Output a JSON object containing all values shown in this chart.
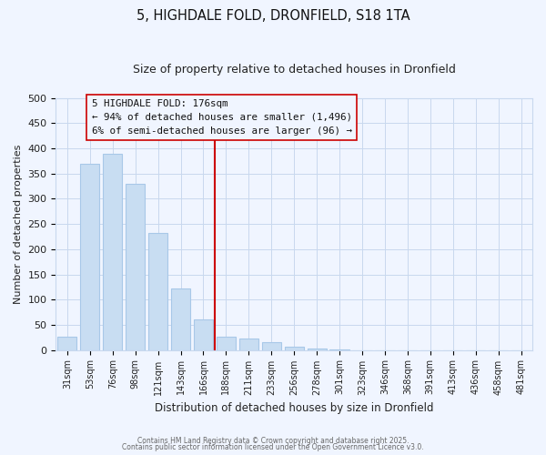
{
  "title": "5, HIGHDALE FOLD, DRONFIELD, S18 1TA",
  "subtitle": "Size of property relative to detached houses in Dronfield",
  "bar_labels": [
    "31sqm",
    "53sqm",
    "76sqm",
    "98sqm",
    "121sqm",
    "143sqm",
    "166sqm",
    "188sqm",
    "211sqm",
    "233sqm",
    "256sqm",
    "278sqm",
    "301sqm",
    "323sqm",
    "346sqm",
    "368sqm",
    "391sqm",
    "413sqm",
    "436sqm",
    "458sqm",
    "481sqm"
  ],
  "bar_values": [
    27,
    370,
    390,
    330,
    232,
    122,
    60,
    26,
    22,
    16,
    7,
    2,
    1,
    0,
    0,
    0,
    0,
    0,
    0,
    0,
    0
  ],
  "bar_color": "#c8ddf2",
  "bar_edge_color": "#a8c8e8",
  "vline_color": "#cc0000",
  "ylabel": "Number of detached properties",
  "xlabel": "Distribution of detached houses by size in Dronfield",
  "ylim": [
    0,
    500
  ],
  "yticks": [
    0,
    50,
    100,
    150,
    200,
    250,
    300,
    350,
    400,
    450,
    500
  ],
  "annotation_title": "5 HIGHDALE FOLD: 176sqm",
  "annotation_line1": "← 94% of detached houses are smaller (1,496)",
  "annotation_line2": "6% of semi-detached houses are larger (96) →",
  "footer1": "Contains HM Land Registry data © Crown copyright and database right 2025.",
  "footer2": "Contains public sector information licensed under the Open Government Licence v3.0.",
  "bg_color": "#f0f5ff",
  "grid_color": "#c8d8ee"
}
